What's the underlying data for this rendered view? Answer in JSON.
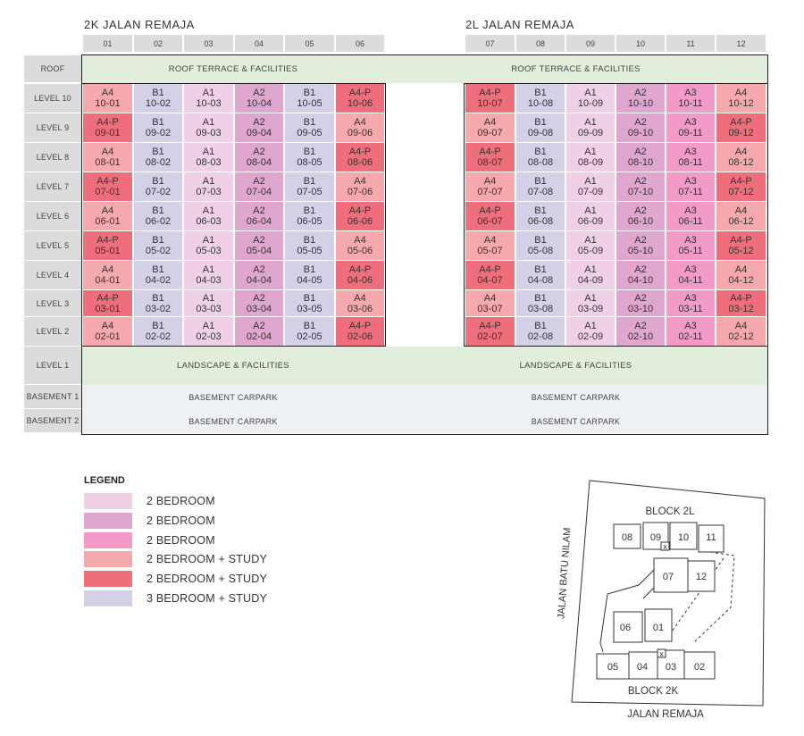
{
  "blocks": [
    {
      "name": "2K JALAN REMAJA",
      "columns": [
        "01",
        "02",
        "03",
        "04",
        "05",
        "06"
      ]
    },
    {
      "name": "2L JALAN REMAJA",
      "columns": [
        "07",
        "08",
        "09",
        "10",
        "11",
        "12"
      ]
    }
  ],
  "row_labels": [
    "ROOF",
    "LEVEL 10",
    "LEVEL 9",
    "LEVEL 8",
    "LEVEL 7",
    "LEVEL 6",
    "LEVEL 5",
    "LEVEL 4",
    "LEVEL 3",
    "LEVEL 2",
    "LEVEL 1",
    "BASEMENT 1",
    "BASEMENT 2"
  ],
  "bands": {
    "roof": "ROOF TERRACE & FACILITIES",
    "level1": "LANDSCAPE & FACILITIES",
    "basement": "BASEMENT CARPARK"
  },
  "colors": {
    "A1": "#f0d0e6",
    "A2": "#dfa6cf",
    "A3": "#f29ac8",
    "A4": "#f6a9ac",
    "A4-P": "#ee6f7b",
    "B1": "#d3d0e8"
  },
  "floors": [
    {
      "level": "10",
      "units": [
        [
          "A4",
          "10-01"
        ],
        [
          "B1",
          "10-02"
        ],
        [
          "A1",
          "10-03"
        ],
        [
          "A2",
          "10-04"
        ],
        [
          "B1",
          "10-05"
        ],
        [
          "A4-P",
          "10-06"
        ],
        [
          "A4-P",
          "10-07"
        ],
        [
          "B1",
          "10-08"
        ],
        [
          "A1",
          "10-09"
        ],
        [
          "A2",
          "10-10"
        ],
        [
          "A3",
          "10-11"
        ],
        [
          "A4",
          "10-12"
        ]
      ]
    },
    {
      "level": "9",
      "units": [
        [
          "A4-P",
          "09-01"
        ],
        [
          "B1",
          "09-02"
        ],
        [
          "A1",
          "09-03"
        ],
        [
          "A2",
          "09-04"
        ],
        [
          "B1",
          "09-05"
        ],
        [
          "A4",
          "09-06"
        ],
        [
          "A4",
          "09-07"
        ],
        [
          "B1",
          "09-08"
        ],
        [
          "A1",
          "09-09"
        ],
        [
          "A2",
          "09-10"
        ],
        [
          "A3",
          "09-11"
        ],
        [
          "A4-P",
          "09-12"
        ]
      ]
    },
    {
      "level": "8",
      "units": [
        [
          "A4",
          "08-01"
        ],
        [
          "B1",
          "08-02"
        ],
        [
          "A1",
          "08-03"
        ],
        [
          "A2",
          "08-04"
        ],
        [
          "B1",
          "08-05"
        ],
        [
          "A4-P",
          "08-06"
        ],
        [
          "A4-P",
          "08-07"
        ],
        [
          "B1",
          "08-08"
        ],
        [
          "A1",
          "08-09"
        ],
        [
          "A2",
          "08-10"
        ],
        [
          "A3",
          "08-11"
        ],
        [
          "A4",
          "08-12"
        ]
      ]
    },
    {
      "level": "7",
      "units": [
        [
          "A4-P",
          "07-01"
        ],
        [
          "B1",
          "07-02"
        ],
        [
          "A1",
          "07-03"
        ],
        [
          "A2",
          "07-04"
        ],
        [
          "B1",
          "07-05"
        ],
        [
          "A4",
          "07-06"
        ],
        [
          "A4",
          "07-07"
        ],
        [
          "B1",
          "07-08"
        ],
        [
          "A1",
          "07-09"
        ],
        [
          "A2",
          "07-10"
        ],
        [
          "A3",
          "07-11"
        ],
        [
          "A4-P",
          "07-12"
        ]
      ]
    },
    {
      "level": "6",
      "units": [
        [
          "A4",
          "06-01"
        ],
        [
          "B1",
          "06-02"
        ],
        [
          "A1",
          "06-03"
        ],
        [
          "A2",
          "06-04"
        ],
        [
          "B1",
          "06-05"
        ],
        [
          "A4-P",
          "06-06"
        ],
        [
          "A4-P",
          "06-07"
        ],
        [
          "B1",
          "06-08"
        ],
        [
          "A1",
          "06-09"
        ],
        [
          "A2",
          "06-10"
        ],
        [
          "A3",
          "06-11"
        ],
        [
          "A4",
          "06-12"
        ]
      ]
    },
    {
      "level": "5",
      "units": [
        [
          "A4-P",
          "05-01"
        ],
        [
          "B1",
          "05-02"
        ],
        [
          "A1",
          "05-03"
        ],
        [
          "A2",
          "05-04"
        ],
        [
          "B1",
          "05-05"
        ],
        [
          "A4",
          "05-06"
        ],
        [
          "A4",
          "05-07"
        ],
        [
          "B1",
          "05-08"
        ],
        [
          "A1",
          "05-09"
        ],
        [
          "A2",
          "05-10"
        ],
        [
          "A3",
          "05-11"
        ],
        [
          "A4-P",
          "05-12"
        ]
      ]
    },
    {
      "level": "4",
      "units": [
        [
          "A4",
          "04-01"
        ],
        [
          "B1",
          "04-02"
        ],
        [
          "A1",
          "04-03"
        ],
        [
          "A2",
          "04-04"
        ],
        [
          "B1",
          "04-05"
        ],
        [
          "A4-P",
          "04-06"
        ],
        [
          "A4-P",
          "04-07"
        ],
        [
          "B1",
          "04-08"
        ],
        [
          "A1",
          "04-09"
        ],
        [
          "A2",
          "04-10"
        ],
        [
          "A3",
          "04-11"
        ],
        [
          "A4",
          "04-12"
        ]
      ]
    },
    {
      "level": "3",
      "units": [
        [
          "A4-P",
          "03-01"
        ],
        [
          "B1",
          "03-02"
        ],
        [
          "A1",
          "03-03"
        ],
        [
          "A2",
          "03-04"
        ],
        [
          "B1",
          "03-05"
        ],
        [
          "A4",
          "03-06"
        ],
        [
          "A4",
          "03-07"
        ],
        [
          "B1",
          "03-08"
        ],
        [
          "A1",
          "03-09"
        ],
        [
          "A2",
          "03-10"
        ],
        [
          "A3",
          "03-11"
        ],
        [
          "A4-P",
          "03-12"
        ]
      ]
    },
    {
      "level": "2",
      "units": [
        [
          "A4",
          "02-01"
        ],
        [
          "B1",
          "02-02"
        ],
        [
          "A1",
          "02-03"
        ],
        [
          "A2",
          "02-04"
        ],
        [
          "B1",
          "02-05"
        ],
        [
          "A4-P",
          "02-06"
        ],
        [
          "A4-P",
          "02-07"
        ],
        [
          "B1",
          "02-08"
        ],
        [
          "A1",
          "02-09"
        ],
        [
          "A2",
          "02-10"
        ],
        [
          "A3",
          "02-11"
        ],
        [
          "A4",
          "02-12"
        ]
      ]
    }
  ],
  "legend": {
    "title": "LEGEND",
    "items": [
      {
        "type": "A1",
        "label": "2 BEDROOM"
      },
      {
        "type": "A2",
        "label": "2 BEDROOM"
      },
      {
        "type": "A3",
        "label": "2 BEDROOM"
      },
      {
        "type": "A4",
        "label": "2 BEDROOM + STUDY"
      },
      {
        "type": "A4-P",
        "label": "2 BEDROOM + STUDY"
      },
      {
        "type": "B1",
        "label": "3 BEDROOM + STUDY"
      }
    ]
  },
  "keyplan": {
    "block_2l": "BLOCK 2L",
    "block_2k": "BLOCK 2K",
    "road_west": "JALAN BATU NILAM",
    "road_south": "JALAN REMAJA",
    "units": [
      "08",
      "09",
      "10",
      "11",
      "07",
      "12",
      "06",
      "01",
      "05",
      "04",
      "03",
      "02"
    ],
    "lift_mark": "x"
  }
}
